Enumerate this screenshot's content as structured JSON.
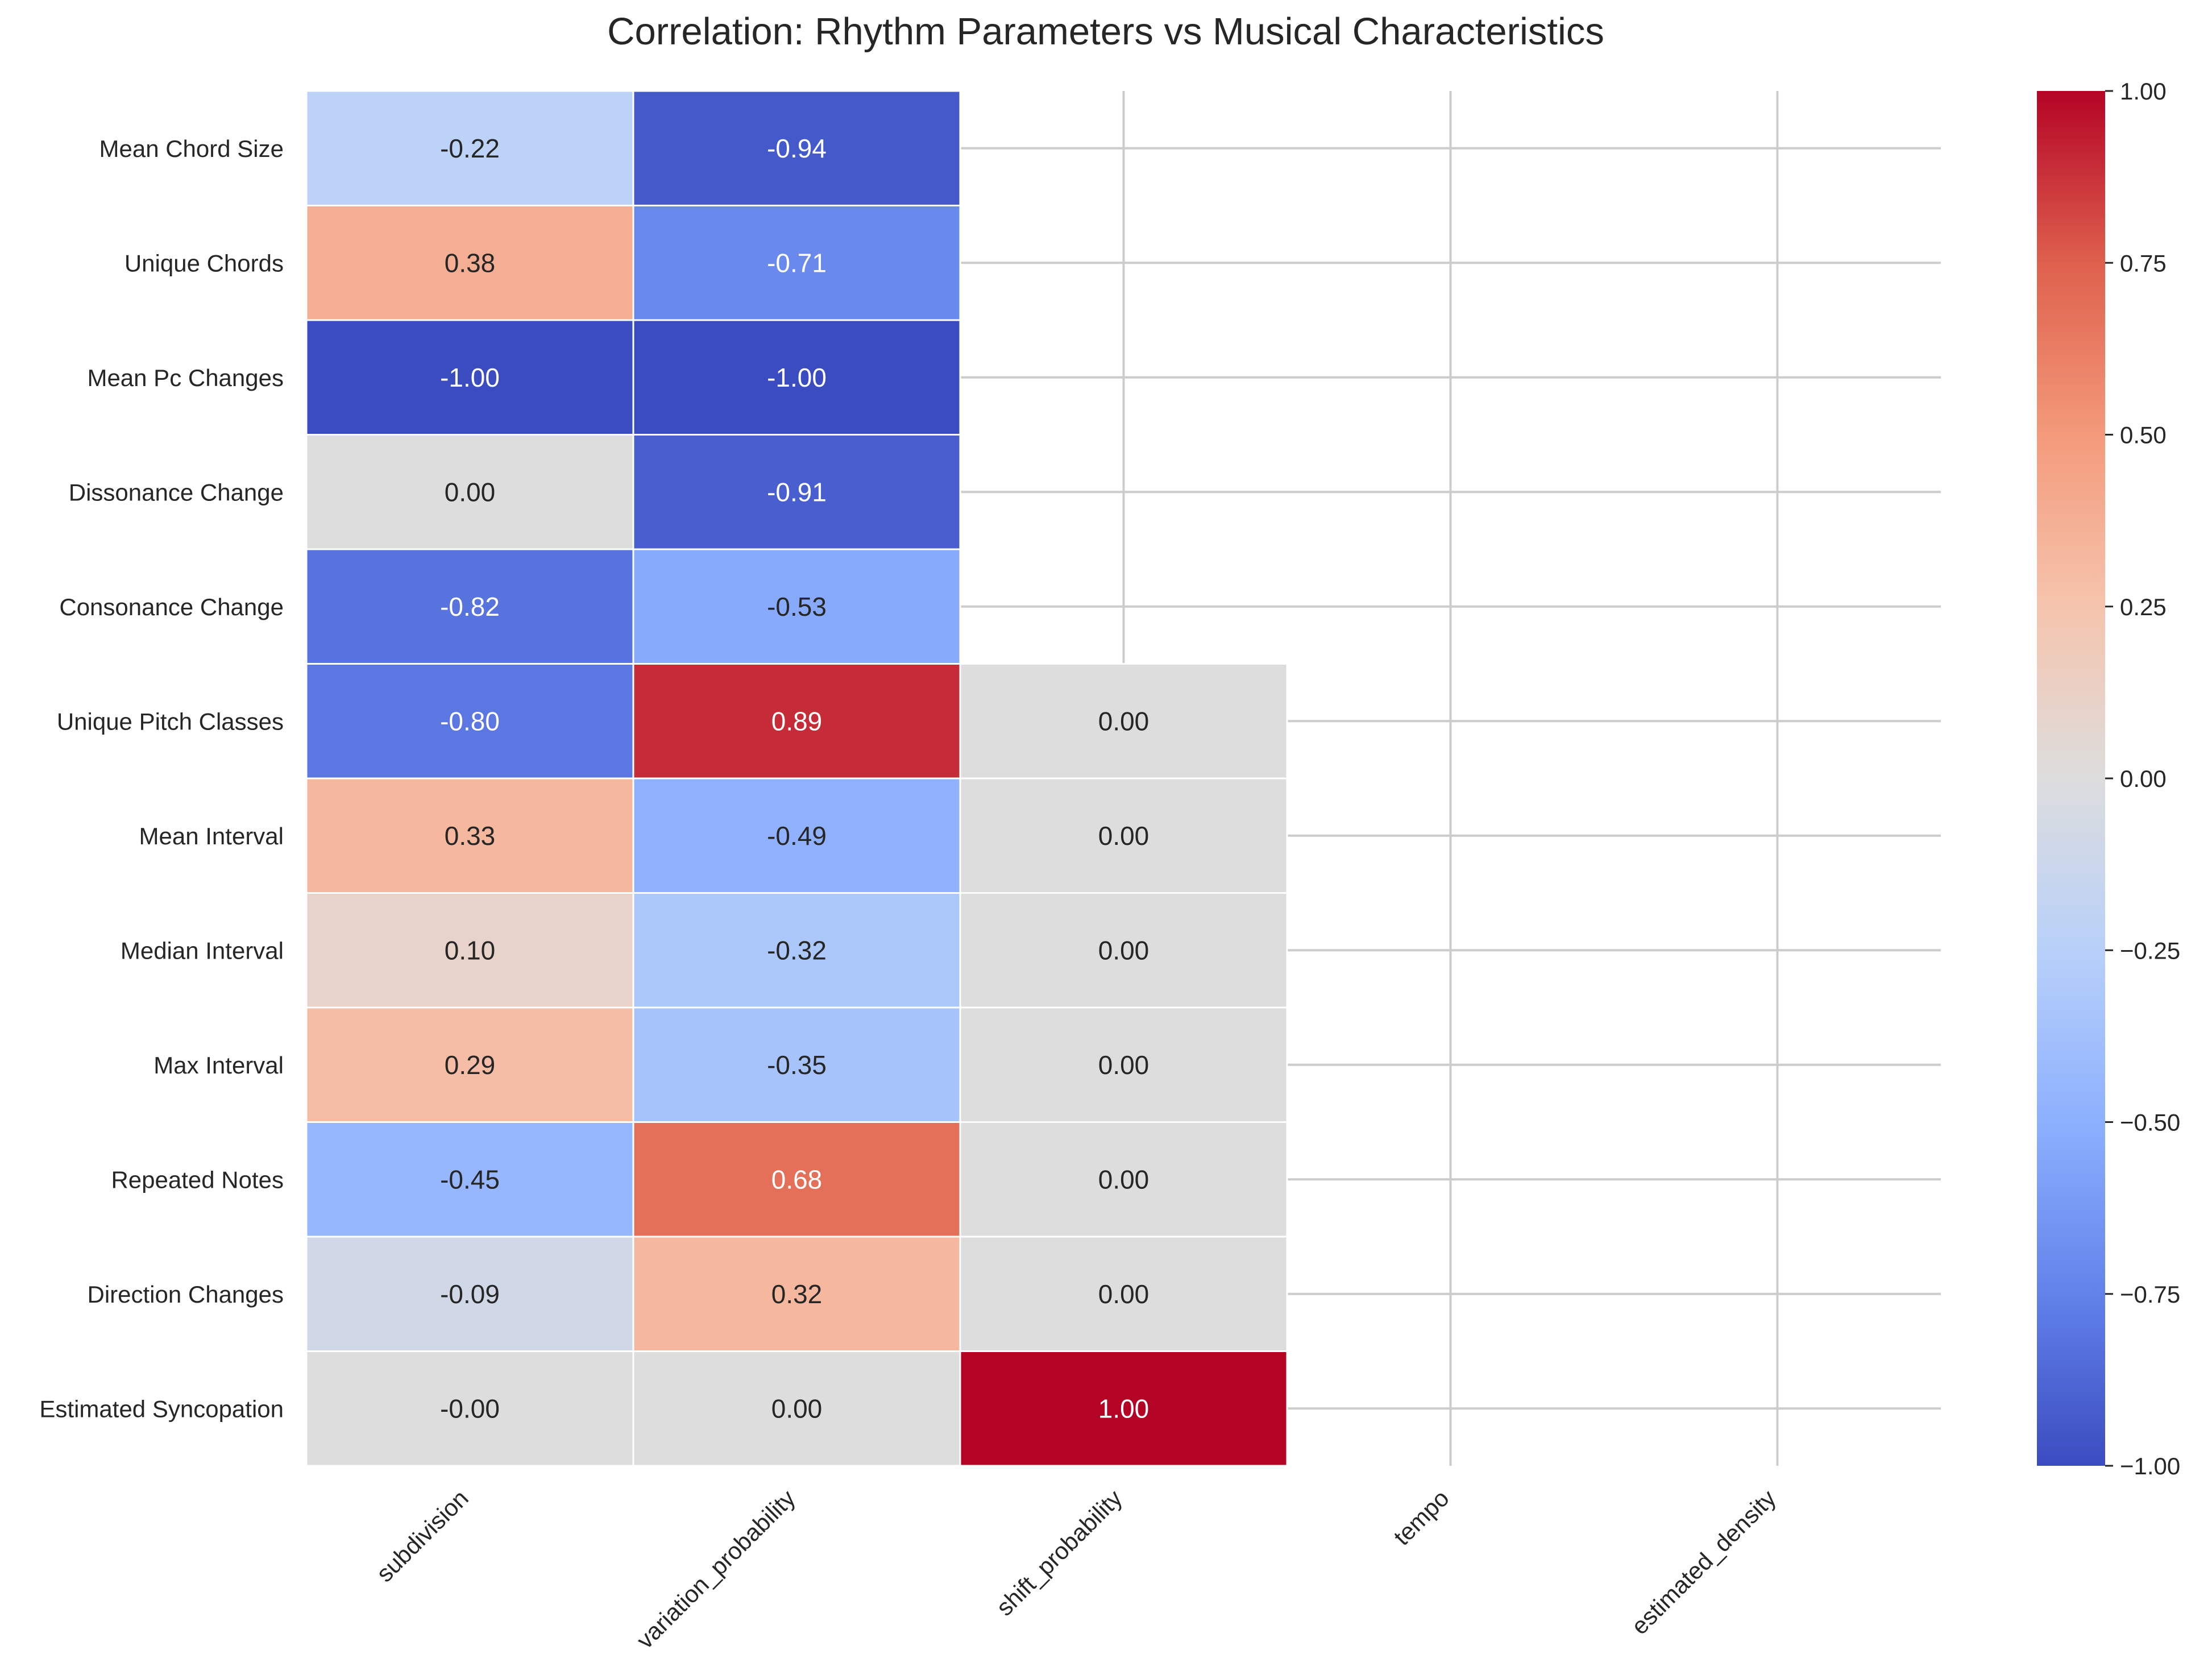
{
  "chart_data": {
    "type": "heatmap",
    "title": "Correlation: Rhythm Parameters vs Musical Characteristics",
    "xlabel": "",
    "ylabel": "",
    "columns": [
      "subdivision",
      "variation_probability",
      "shift_probability",
      "tempo",
      "estimated_density"
    ],
    "rows": [
      "Mean Chord Size",
      "Unique Chords",
      "Mean Pc Changes",
      "Dissonance Change",
      "Consonance Change",
      "Unique Pitch Classes",
      "Mean Interval",
      "Median Interval",
      "Max Interval",
      "Repeated Notes",
      "Direction Changes",
      "Estimated Syncopation"
    ],
    "values": [
      [
        -0.22,
        -0.94,
        null,
        null,
        null
      ],
      [
        0.38,
        -0.71,
        null,
        null,
        null
      ],
      [
        -1.0,
        -1.0,
        null,
        null,
        null
      ],
      [
        0.0,
        -0.91,
        null,
        null,
        null
      ],
      [
        -0.82,
        -0.53,
        null,
        null,
        null
      ],
      [
        -0.8,
        0.89,
        0.0,
        null,
        null
      ],
      [
        0.33,
        -0.49,
        0.0,
        null,
        null
      ],
      [
        0.1,
        -0.32,
        0.0,
        null,
        null
      ],
      [
        0.29,
        -0.35,
        0.0,
        null,
        null
      ],
      [
        -0.45,
        0.68,
        0.0,
        null,
        null
      ],
      [
        -0.09,
        0.32,
        0.0,
        null,
        null
      ],
      [
        -0.0,
        0.0,
        1.0,
        null,
        null
      ]
    ],
    "value_labels": [
      [
        "-0.22",
        "-0.94",
        null,
        null,
        null
      ],
      [
        "0.38",
        "-0.71",
        null,
        null,
        null
      ],
      [
        "-1.00",
        "-1.00",
        null,
        null,
        null
      ],
      [
        "0.00",
        "-0.91",
        null,
        null,
        null
      ],
      [
        "-0.82",
        "-0.53",
        null,
        null,
        null
      ],
      [
        "-0.80",
        "0.89",
        "0.00",
        null,
        null
      ],
      [
        "0.33",
        "-0.49",
        "0.00",
        null,
        null
      ],
      [
        "0.10",
        "-0.32",
        "0.00",
        null,
        null
      ],
      [
        "0.29",
        "-0.35",
        "0.00",
        null,
        null
      ],
      [
        "-0.45",
        "0.68",
        "0.00",
        null,
        null
      ],
      [
        "-0.09",
        "0.32",
        "0.00",
        null,
        null
      ],
      [
        "-0.00",
        "0.00",
        "1.00",
        null,
        null
      ]
    ],
    "colormap": "coolwarm",
    "vmin": -1.0,
    "vmax": 1.0,
    "colorbar_ticks": [
      "1.00",
      "0.75",
      "0.50",
      "0.25",
      "0.00",
      "−0.25",
      "−0.50",
      "−0.75",
      "−1.00"
    ],
    "colorbar_tick_values": [
      1.0,
      0.75,
      0.5,
      0.25,
      0.0,
      -0.25,
      -0.5,
      -0.75,
      -1.0
    ],
    "grid": true,
    "colors": {
      "grid": "#cccccc",
      "text_dark": "#262626",
      "text_light": "#ffffff",
      "cell_border": "#ffffff"
    }
  }
}
